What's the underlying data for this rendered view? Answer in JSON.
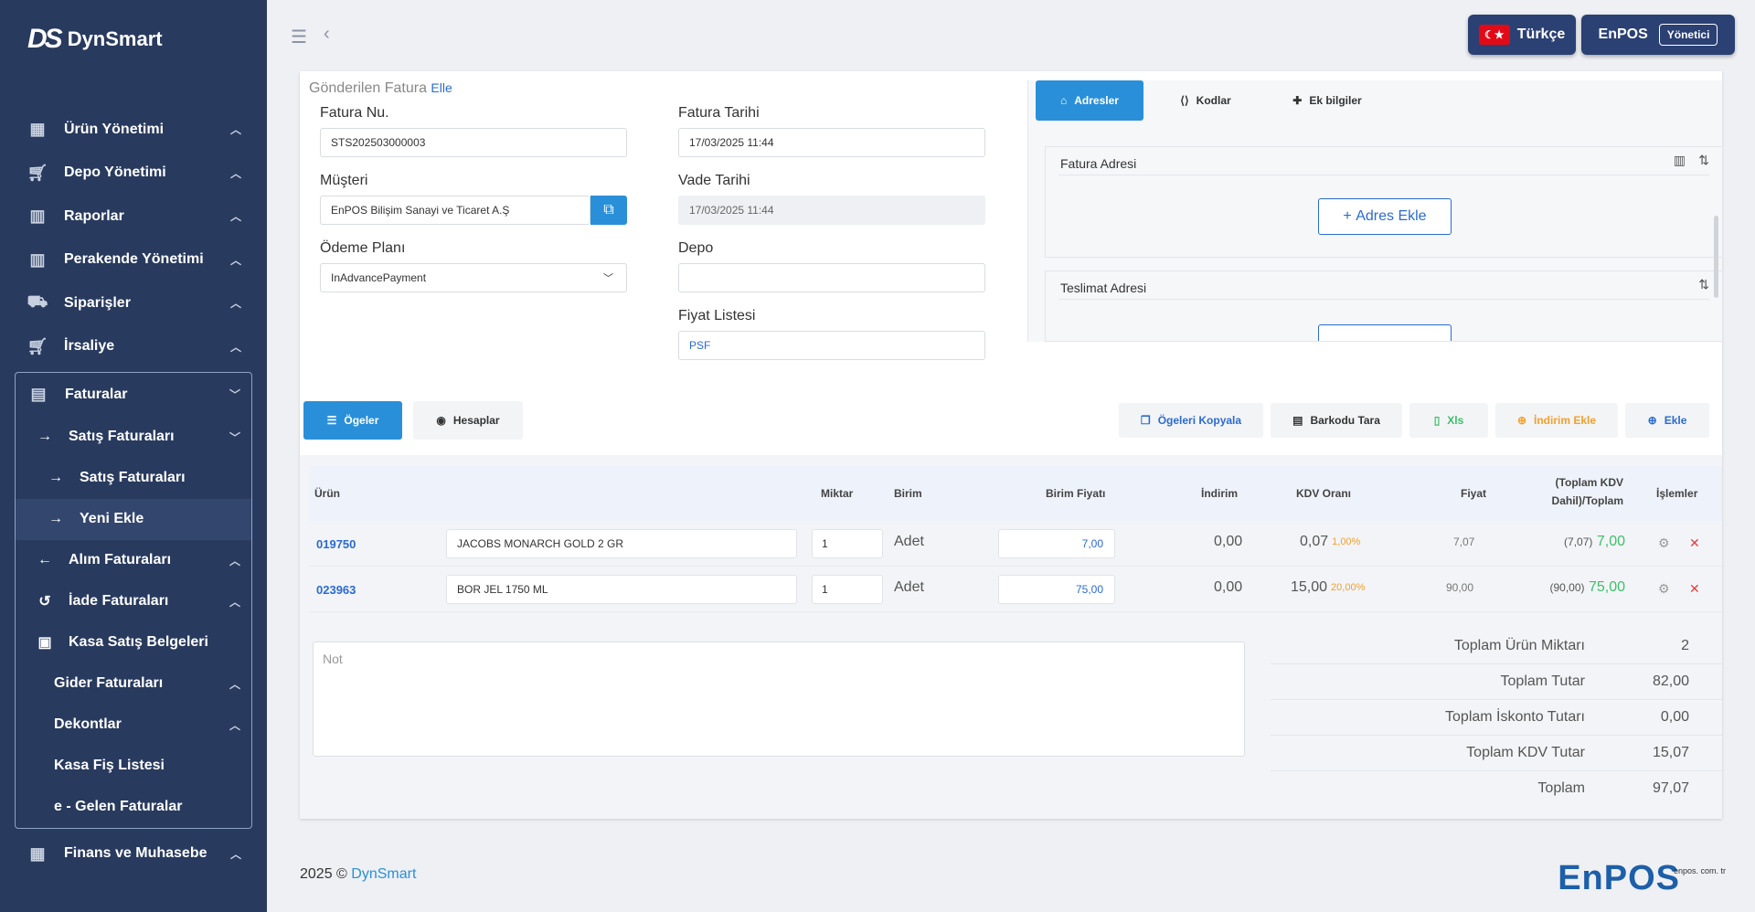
{
  "sidebar": {
    "logo": "DynSmart",
    "items": [
      {
        "label": "Ürün Yönetimi"
      },
      {
        "label": "Depo Yönetimi"
      },
      {
        "label": "Raporlar"
      },
      {
        "label": "Perakende Yönetimi"
      },
      {
        "label": "Siparişler"
      },
      {
        "label": "İrsaliye"
      }
    ],
    "faturalar": {
      "label": "Faturalar",
      "satis": "Satış Faturaları",
      "satis_sub": "Satış Faturaları",
      "yeni": "Yeni Ekle",
      "alim": "Alım Faturaları",
      "iade": "İade Faturaları",
      "kasa": "Kasa Satış Belgeleri",
      "gider": "Gider Faturaları",
      "dekont": "Dekontlar",
      "fis": "Kasa Fiş Listesi",
      "egelen": "e - Gelen Faturalar"
    },
    "finans": "Finans ve Muhasebe"
  },
  "topbar": {
    "language": "Türkçe",
    "user": "EnPOS",
    "role": "Yönetici"
  },
  "form": {
    "title": "Gönderilen Fatura",
    "title_link": "Elle",
    "fatura_nu_label": "Fatura Nu.",
    "fatura_nu": "STS202503000003",
    "musteri_label": "Müşteri",
    "musteri": "EnPOS Bilişim Sanayi ve Ticaret A.Ş",
    "odeme_label": "Ödeme Planı",
    "odeme": "InAdvancePayment",
    "fatura_tarihi_label": "Fatura Tarihi",
    "fatura_tarihi": "17/03/2025 11:44",
    "vade_label": "Vade Tarihi",
    "vade": "17/03/2025 11:44",
    "depo_label": "Depo",
    "depo": "",
    "fiyat_label": "Fiyat Listesi",
    "fiyat": "PSF"
  },
  "panel": {
    "tabs": [
      "Adresler",
      "Kodlar",
      "Ek bilgiler"
    ],
    "fatura_adresi": "Fatura Adresi",
    "teslimat_adresi": "Teslimat Adresi",
    "adres_ekle": "Adres Ekle"
  },
  "items": {
    "tabs": [
      "Ögeler",
      "Hesaplar"
    ],
    "buttons": [
      "Ögeleri Kopyala",
      "Barkodu Tara",
      "Xls",
      "İndirim Ekle",
      "Ekle"
    ],
    "headers": {
      "urun": "Ürün",
      "miktar": "Miktar",
      "birim": "Birim",
      "birim_fiyati": "Birim Fiyatı",
      "indirim": "İndirim",
      "kdv": "KDV Oranı",
      "fiyat": "Fiyat",
      "toplam_1": "(Toplam KDV",
      "toplam_2": "Dahil)/Toplam",
      "islemler": "İşlemler"
    },
    "rows": [
      {
        "code": "019750",
        "name": "JACOBS MONARCH GOLD 2 GR",
        "qty": "1",
        "unit": "Adet",
        "price": "7,00",
        "discount": "0,00",
        "kdv": "0,07",
        "kdv_pct": "1,00%",
        "fiyat": "7,07",
        "toplam_paren": "(7,07)",
        "toplam": "7,00"
      },
      {
        "code": "023963",
        "name": "BOR JEL 1750 ML",
        "qty": "1",
        "unit": "Adet",
        "price": "75,00",
        "discount": "0,00",
        "kdv": "15,00",
        "kdv_pct": "20,00%",
        "fiyat": "90,00",
        "toplam_paren": "(90,00)",
        "toplam": "75,00"
      }
    ]
  },
  "note": {
    "placeholder": "Not"
  },
  "totals": [
    {
      "label": "Toplam Ürün Miktarı",
      "value": "2"
    },
    {
      "label": "Toplam Tutar",
      "value": "82,00"
    },
    {
      "label": "Toplam İskonto Tutarı",
      "value": "0,00"
    },
    {
      "label": "Toplam KDV Tutar",
      "value": "15,07"
    },
    {
      "label": "Toplam",
      "value": "97,07"
    }
  ],
  "footer": {
    "year": "2025 ©",
    "brand": "DynSmart",
    "logo": "EnPOS",
    "logo_small": "enpos. com. tr"
  }
}
